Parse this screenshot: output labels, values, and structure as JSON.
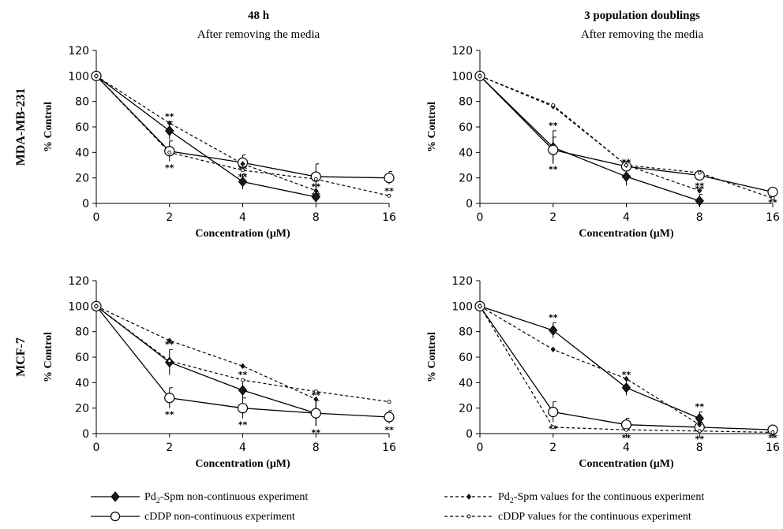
{
  "chart_data": [
    {
      "type": "line",
      "row_label": "MDA-MB-231",
      "title": "48 h",
      "subtitle": "After removing the media",
      "xlabel": "Concentration (μM)",
      "ylabel": "% Control",
      "categories": [
        "0",
        "2",
        "4",
        "8",
        "16"
      ],
      "ylim": [
        0,
        120
      ],
      "yticks": [
        "0",
        "20",
        "40",
        "60",
        "80",
        "100",
        "120"
      ],
      "series": [
        {
          "name": "Pd2-Spm non-continuous experiment",
          "values": [
            100,
            57,
            17,
            5,
            null
          ],
          "errors": [
            0,
            7,
            6,
            4,
            null
          ],
          "stars": [
            false,
            true,
            true,
            true,
            false
          ]
        },
        {
          "name": "cDDP non-continuous experiment",
          "values": [
            100,
            41,
            32,
            21,
            20
          ],
          "errors": [
            0,
            8,
            6,
            10,
            5
          ],
          "stars": [
            false,
            true,
            true,
            true,
            true
          ]
        },
        {
          "name": "Pd2-Spm values for the continuous experiment",
          "values": [
            100,
            63,
            31,
            10,
            null
          ]
        },
        {
          "name": "cDDP values for the continuous experiment",
          "values": [
            100,
            40,
            26,
            19,
            6
          ]
        }
      ]
    },
    {
      "type": "line",
      "title": "3 population doublings",
      "subtitle": "After removing the media",
      "xlabel": "Concentration (μM)",
      "ylabel": "% Control",
      "categories": [
        "0",
        "2",
        "4",
        "8",
        "16"
      ],
      "ylim": [
        0,
        120
      ],
      "yticks": [
        "0",
        "20",
        "40",
        "60",
        "80",
        "100",
        "120"
      ],
      "series": [
        {
          "name": "Pd2-Spm non-continuous experiment",
          "values": [
            100,
            44,
            21,
            2,
            null
          ],
          "errors": [
            0,
            13,
            7,
            5,
            null
          ],
          "stars": [
            false,
            true,
            true,
            true,
            false
          ]
        },
        {
          "name": "cDDP non-continuous experiment",
          "values": [
            100,
            42,
            29,
            22,
            9
          ],
          "errors": [
            0,
            10,
            4,
            3,
            3
          ],
          "stars": [
            false,
            true,
            true,
            true,
            true
          ]
        },
        {
          "name": "Pd2-Spm values for the continuous experiment",
          "values": [
            100,
            76,
            30,
            10,
            null
          ]
        },
        {
          "name": "cDDP values for the continuous experiment",
          "values": [
            100,
            77,
            30,
            24,
            4
          ]
        }
      ]
    },
    {
      "type": "line",
      "row_label": "MCF-7",
      "xlabel": "Concentration (μM)",
      "ylabel": "% Control",
      "categories": [
        "0",
        "2",
        "4",
        "8",
        "16"
      ],
      "ylim": [
        0,
        120
      ],
      "yticks": [
        "0",
        "20",
        "40",
        "60",
        "80",
        "100",
        "120"
      ],
      "series": [
        {
          "name": "Pd2-Spm non-continuous experiment",
          "values": [
            100,
            56,
            34,
            16,
            null
          ],
          "errors": [
            0,
            10,
            8,
            10,
            null
          ],
          "stars": [
            false,
            true,
            true,
            true,
            false
          ]
        },
        {
          "name": "cDDP non-continuous experiment",
          "values": [
            100,
            28,
            20,
            16,
            13
          ],
          "errors": [
            0,
            8,
            8,
            10,
            5
          ],
          "stars": [
            false,
            true,
            true,
            true,
            true
          ]
        },
        {
          "name": "Pd2-Spm values for the continuous experiment",
          "values": [
            100,
            73,
            53,
            27,
            null
          ]
        },
        {
          "name": "cDDP values for the continuous experiment",
          "values": [
            100,
            57,
            42,
            33,
            25
          ]
        }
      ]
    },
    {
      "type": "line",
      "xlabel": "Concentration (μM)",
      "ylabel": "% Control",
      "categories": [
        "0",
        "2",
        "4",
        "8",
        "16"
      ],
      "ylim": [
        0,
        120
      ],
      "yticks": [
        "0",
        "20",
        "40",
        "60",
        "80",
        "100",
        "120"
      ],
      "series": [
        {
          "name": "Pd2-Spm non-continuous experiment",
          "values": [
            100,
            81,
            36,
            12,
            null
          ],
          "errors": [
            0,
            6,
            6,
            5,
            null
          ],
          "stars": [
            false,
            true,
            true,
            true,
            false
          ]
        },
        {
          "name": "cDDP non-continuous experiment",
          "values": [
            100,
            17,
            7,
            5,
            3
          ],
          "errors": [
            0,
            8,
            5,
            4,
            1
          ],
          "stars": [
            false,
            true,
            true,
            true,
            true
          ]
        },
        {
          "name": "Pd2-Spm values for the continuous experiment",
          "values": [
            100,
            66,
            43,
            7,
            null
          ]
        },
        {
          "name": "cDDP values for the continuous experiment",
          "values": [
            100,
            5,
            3,
            2,
            1
          ]
        }
      ]
    }
  ],
  "legend": {
    "items": [
      {
        "series_index": 0,
        "pre": "Pd",
        "sub": "2",
        "post": "-Spm non-continuous experiment",
        "marker": "diamond",
        "line": "solid"
      },
      {
        "series_index": 1,
        "pre": "cDDP non-continuous experiment",
        "sub": "",
        "post": "",
        "marker": "circle",
        "line": "solid"
      },
      {
        "series_index": 2,
        "pre": "Pd",
        "sub": "2",
        "post": "-Spm values for the continuous experiment",
        "marker": "small-diamond",
        "line": "dashed"
      },
      {
        "series_index": 3,
        "pre": "cDDP values for the continuous experiment",
        "sub": "",
        "post": "",
        "marker": "small-circle",
        "line": "dashed"
      }
    ]
  },
  "significance_marker": "**",
  "colors": {
    "ink": "#000000",
    "background": "#ffffff",
    "marker_fill": "#1a1a1a"
  }
}
